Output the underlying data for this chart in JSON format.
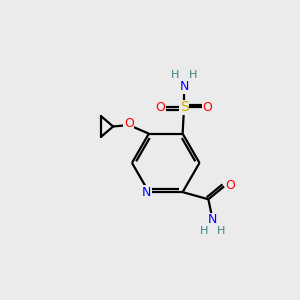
{
  "bg_color": "#ebebeb",
  "atom_colors": {
    "C": "#000000",
    "N": "#0000ff",
    "O": "#ff0000",
    "S": "#ccaa00",
    "H": "#408080"
  },
  "bond_color": "#000000",
  "bond_width": 1.6,
  "figsize": [
    3.0,
    3.0
  ],
  "dpi": 100
}
